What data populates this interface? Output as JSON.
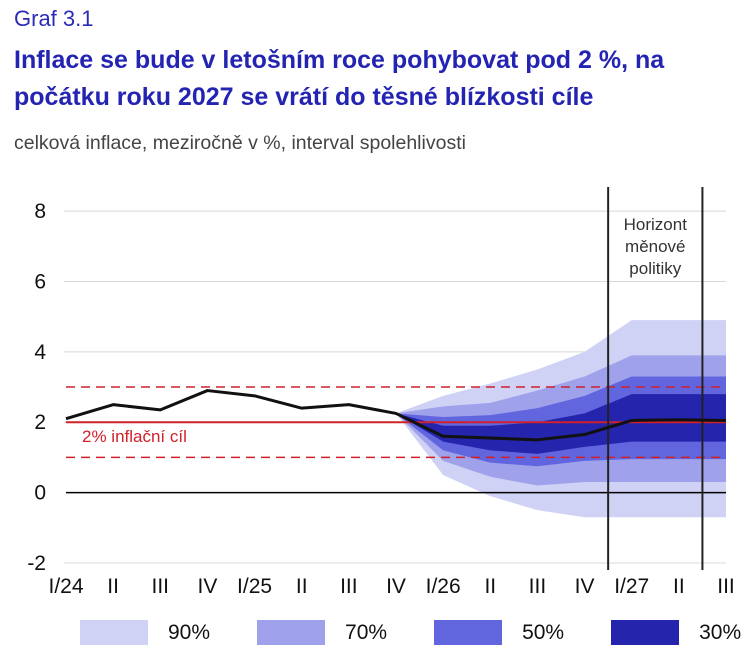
{
  "header": {
    "graf_label": "Graf 3.1",
    "title": "Inflace se bude v letošním roce pohybovat pod 2 %, na počátku roku 2027 se vrátí do těsné blízkosti cíle",
    "subtitle": "celková inflace, meziročně v %, interval spolehlivosti"
  },
  "chart_data": {
    "type": "line",
    "categories": [
      "I/24",
      "II",
      "III",
      "IV",
      "I/25",
      "II",
      "III",
      "IV",
      "I/26",
      "II",
      "III",
      "IV",
      "I/27",
      "II",
      "III"
    ],
    "yticks": [
      "8",
      "6",
      "4",
      "2",
      "0",
      "-2"
    ],
    "ylim": [
      -2.2,
      8.6
    ],
    "series": [
      {
        "values": [
          2.1,
          2.5,
          2.35,
          2.9,
          2.75,
          2.4,
          2.5,
          2.25,
          1.6,
          1.55,
          1.5,
          1.65,
          2.05,
          2.07,
          2.05
        ]
      }
    ],
    "fan_start_index": 7,
    "fan_chart": [
      {
        "name": "90%",
        "color": "#cfd1f5",
        "lower": [
          2.25,
          0.5,
          -0.1,
          -0.5,
          -0.7,
          -0.7,
          -0.7
        ],
        "upper": [
          2.25,
          2.75,
          3.1,
          3.5,
          4.0,
          4.9,
          4.9
        ]
      },
      {
        "name": "70%",
        "color": "#9fa2eb",
        "lower": [
          2.25,
          0.9,
          0.45,
          0.2,
          0.3,
          0.3,
          0.3
        ],
        "upper": [
          2.25,
          2.45,
          2.55,
          2.9,
          3.3,
          3.9,
          3.9
        ]
      },
      {
        "name": "50%",
        "color": "#6266de",
        "lower": [
          2.25,
          1.2,
          0.85,
          0.75,
          0.9,
          0.95,
          0.95
        ],
        "upper": [
          2.25,
          2.15,
          2.2,
          2.4,
          2.75,
          3.3,
          3.3
        ]
      },
      {
        "name": "30%",
        "color": "#2424ad",
        "lower": [
          2.25,
          1.45,
          1.2,
          1.1,
          1.3,
          1.45,
          1.45
        ],
        "upper": [
          2.25,
          1.9,
          1.9,
          2.0,
          2.25,
          2.8,
          2.8
        ]
      }
    ],
    "target": {
      "value": 2,
      "label": "2% inflační cíl",
      "color": "#d0202a",
      "band": [
        1,
        3
      ]
    },
    "annotation": {
      "lines": [
        "Horizont",
        "měnové",
        "politiky"
      ]
    },
    "legend": [
      {
        "label": "90%",
        "color": "#cfd1f5"
      },
      {
        "label": "70%",
        "color": "#9fa2eb"
      },
      {
        "label": "50%",
        "color": "#6266de"
      },
      {
        "label": "30%",
        "color": "#2424ad"
      }
    ],
    "colors": {
      "line": "#111111",
      "grid": "#d8d8d8",
      "zero_line": "#000000"
    }
  }
}
